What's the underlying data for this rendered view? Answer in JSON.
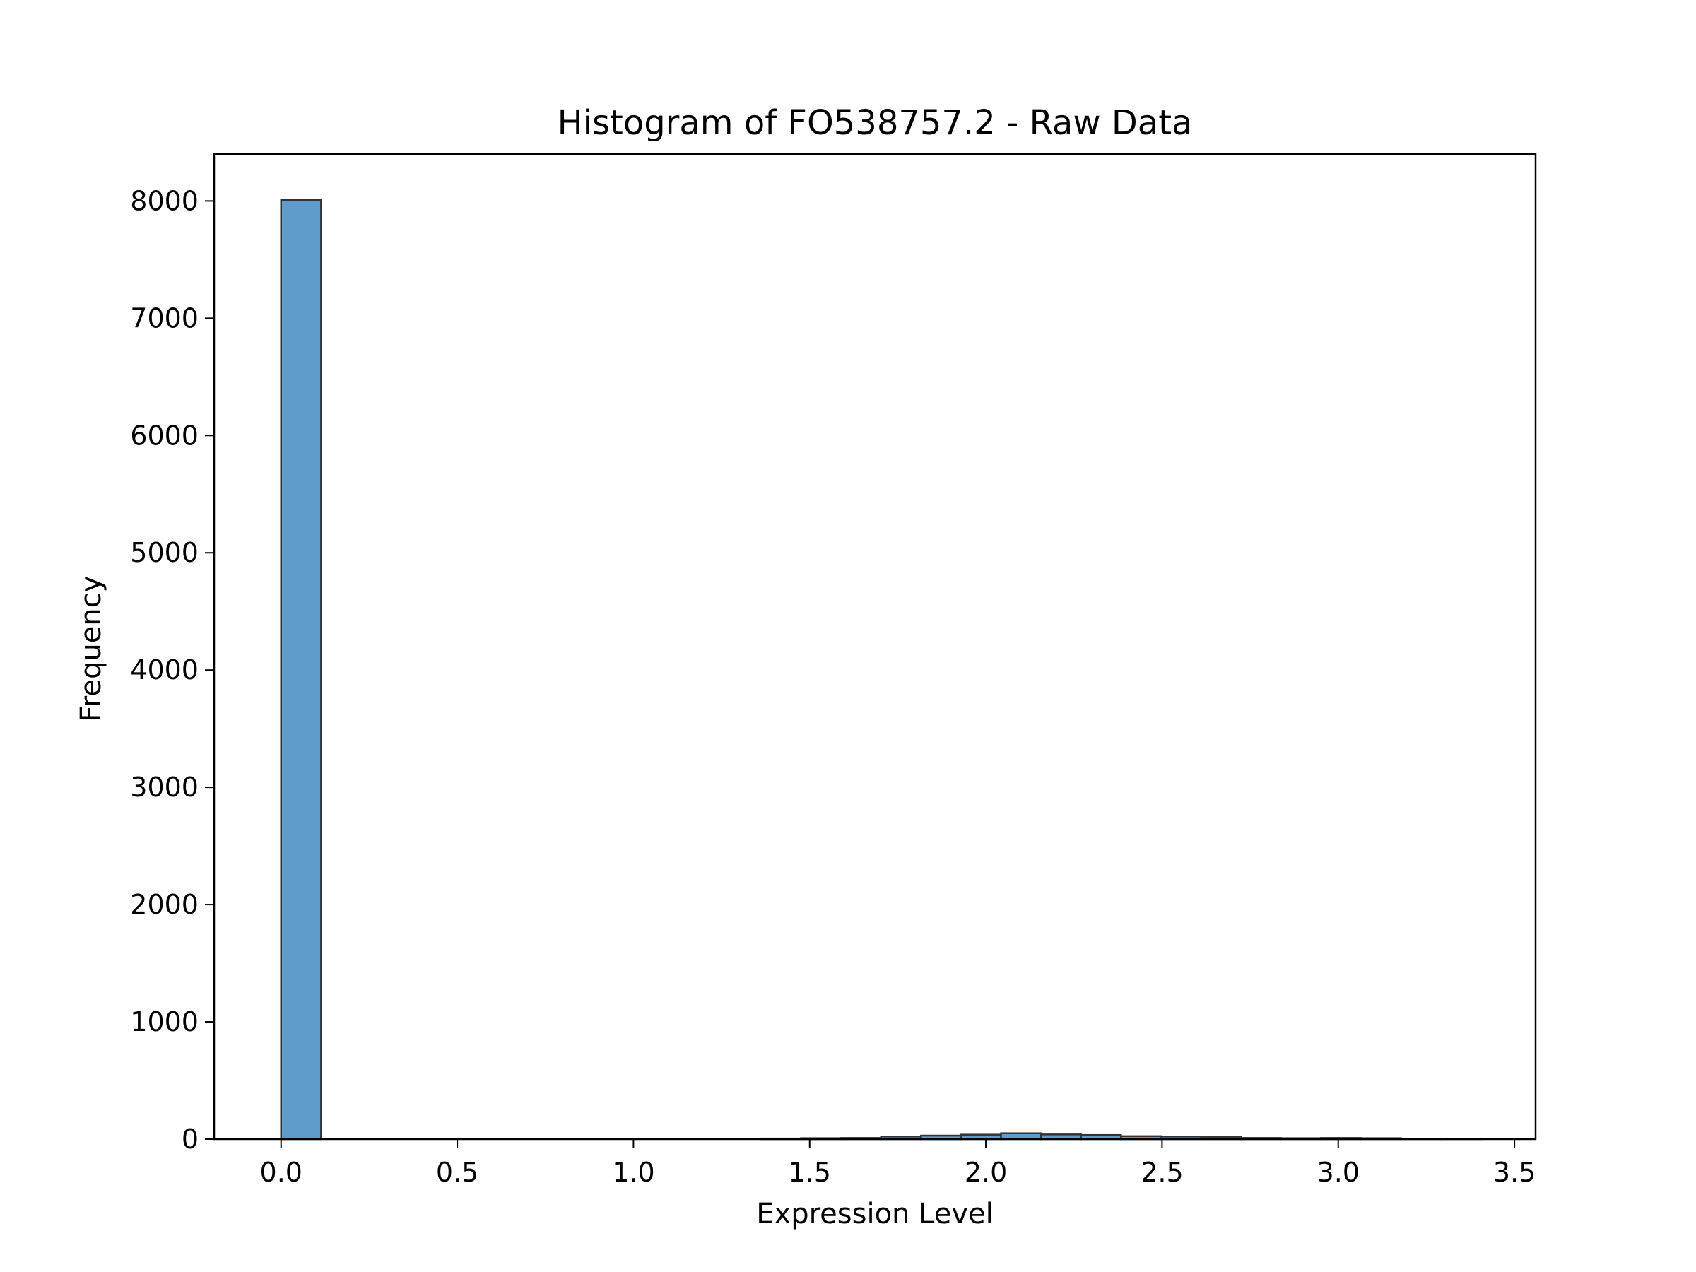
{
  "chart_data": {
    "type": "bar",
    "title": "Histogram of FO538757.2 - Raw Data",
    "xlabel": "Expression Level",
    "ylabel": "Frequency",
    "xlim": [
      -0.19,
      3.56
    ],
    "ylim": [
      0,
      8400
    ],
    "x_ticks": [
      "0.0",
      "0.5",
      "1.0",
      "1.5",
      "2.0",
      "2.5",
      "3.0",
      "3.5"
    ],
    "y_ticks": [
      "0",
      "1000",
      "2000",
      "3000",
      "4000",
      "5000",
      "6000",
      "7000",
      "8000"
    ],
    "bin_edges": [
      0.0,
      0.1135,
      0.227,
      0.3405,
      0.454,
      0.5675,
      0.681,
      0.7945,
      0.908,
      1.0215,
      1.135,
      1.2485,
      1.362,
      1.4755,
      1.589,
      1.7025,
      1.816,
      1.9295,
      2.043,
      2.1565,
      2.27,
      2.3835,
      2.497,
      2.6105,
      2.724,
      2.8375,
      2.951,
      3.0645,
      3.178,
      3.2915,
      3.405
    ],
    "values": [
      8010,
      0,
      0,
      0,
      0,
      0,
      0,
      0,
      0,
      0,
      0,
      0,
      5,
      8,
      10,
      22,
      30,
      38,
      50,
      40,
      35,
      25,
      22,
      20,
      10,
      8,
      10,
      8,
      2,
      1
    ],
    "bar_color": "#5f9ccb",
    "edge_color": "#333333",
    "grid": false
  }
}
